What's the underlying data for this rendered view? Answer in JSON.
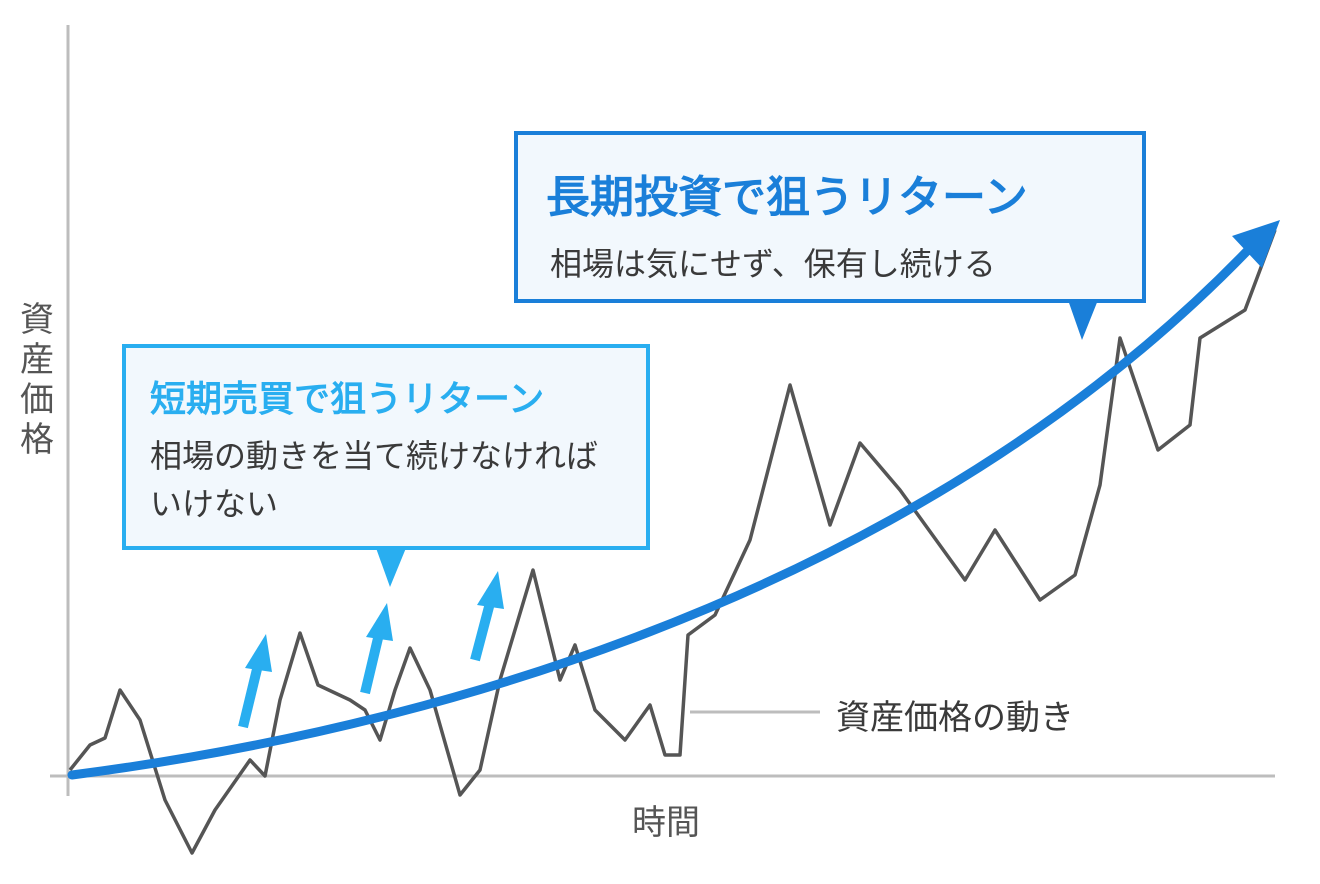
{
  "axes": {
    "y_label": "資産価格",
    "x_label": "時間"
  },
  "long_term": {
    "title": "長期投資で狙うリターン",
    "text": "相場は気にせず、保有し続ける"
  },
  "short_term": {
    "title": "短期売買で狙うリターン",
    "text": "相場の動きを当て続けなければいけない"
  },
  "price_line_label": "資産価格の動き"
}
